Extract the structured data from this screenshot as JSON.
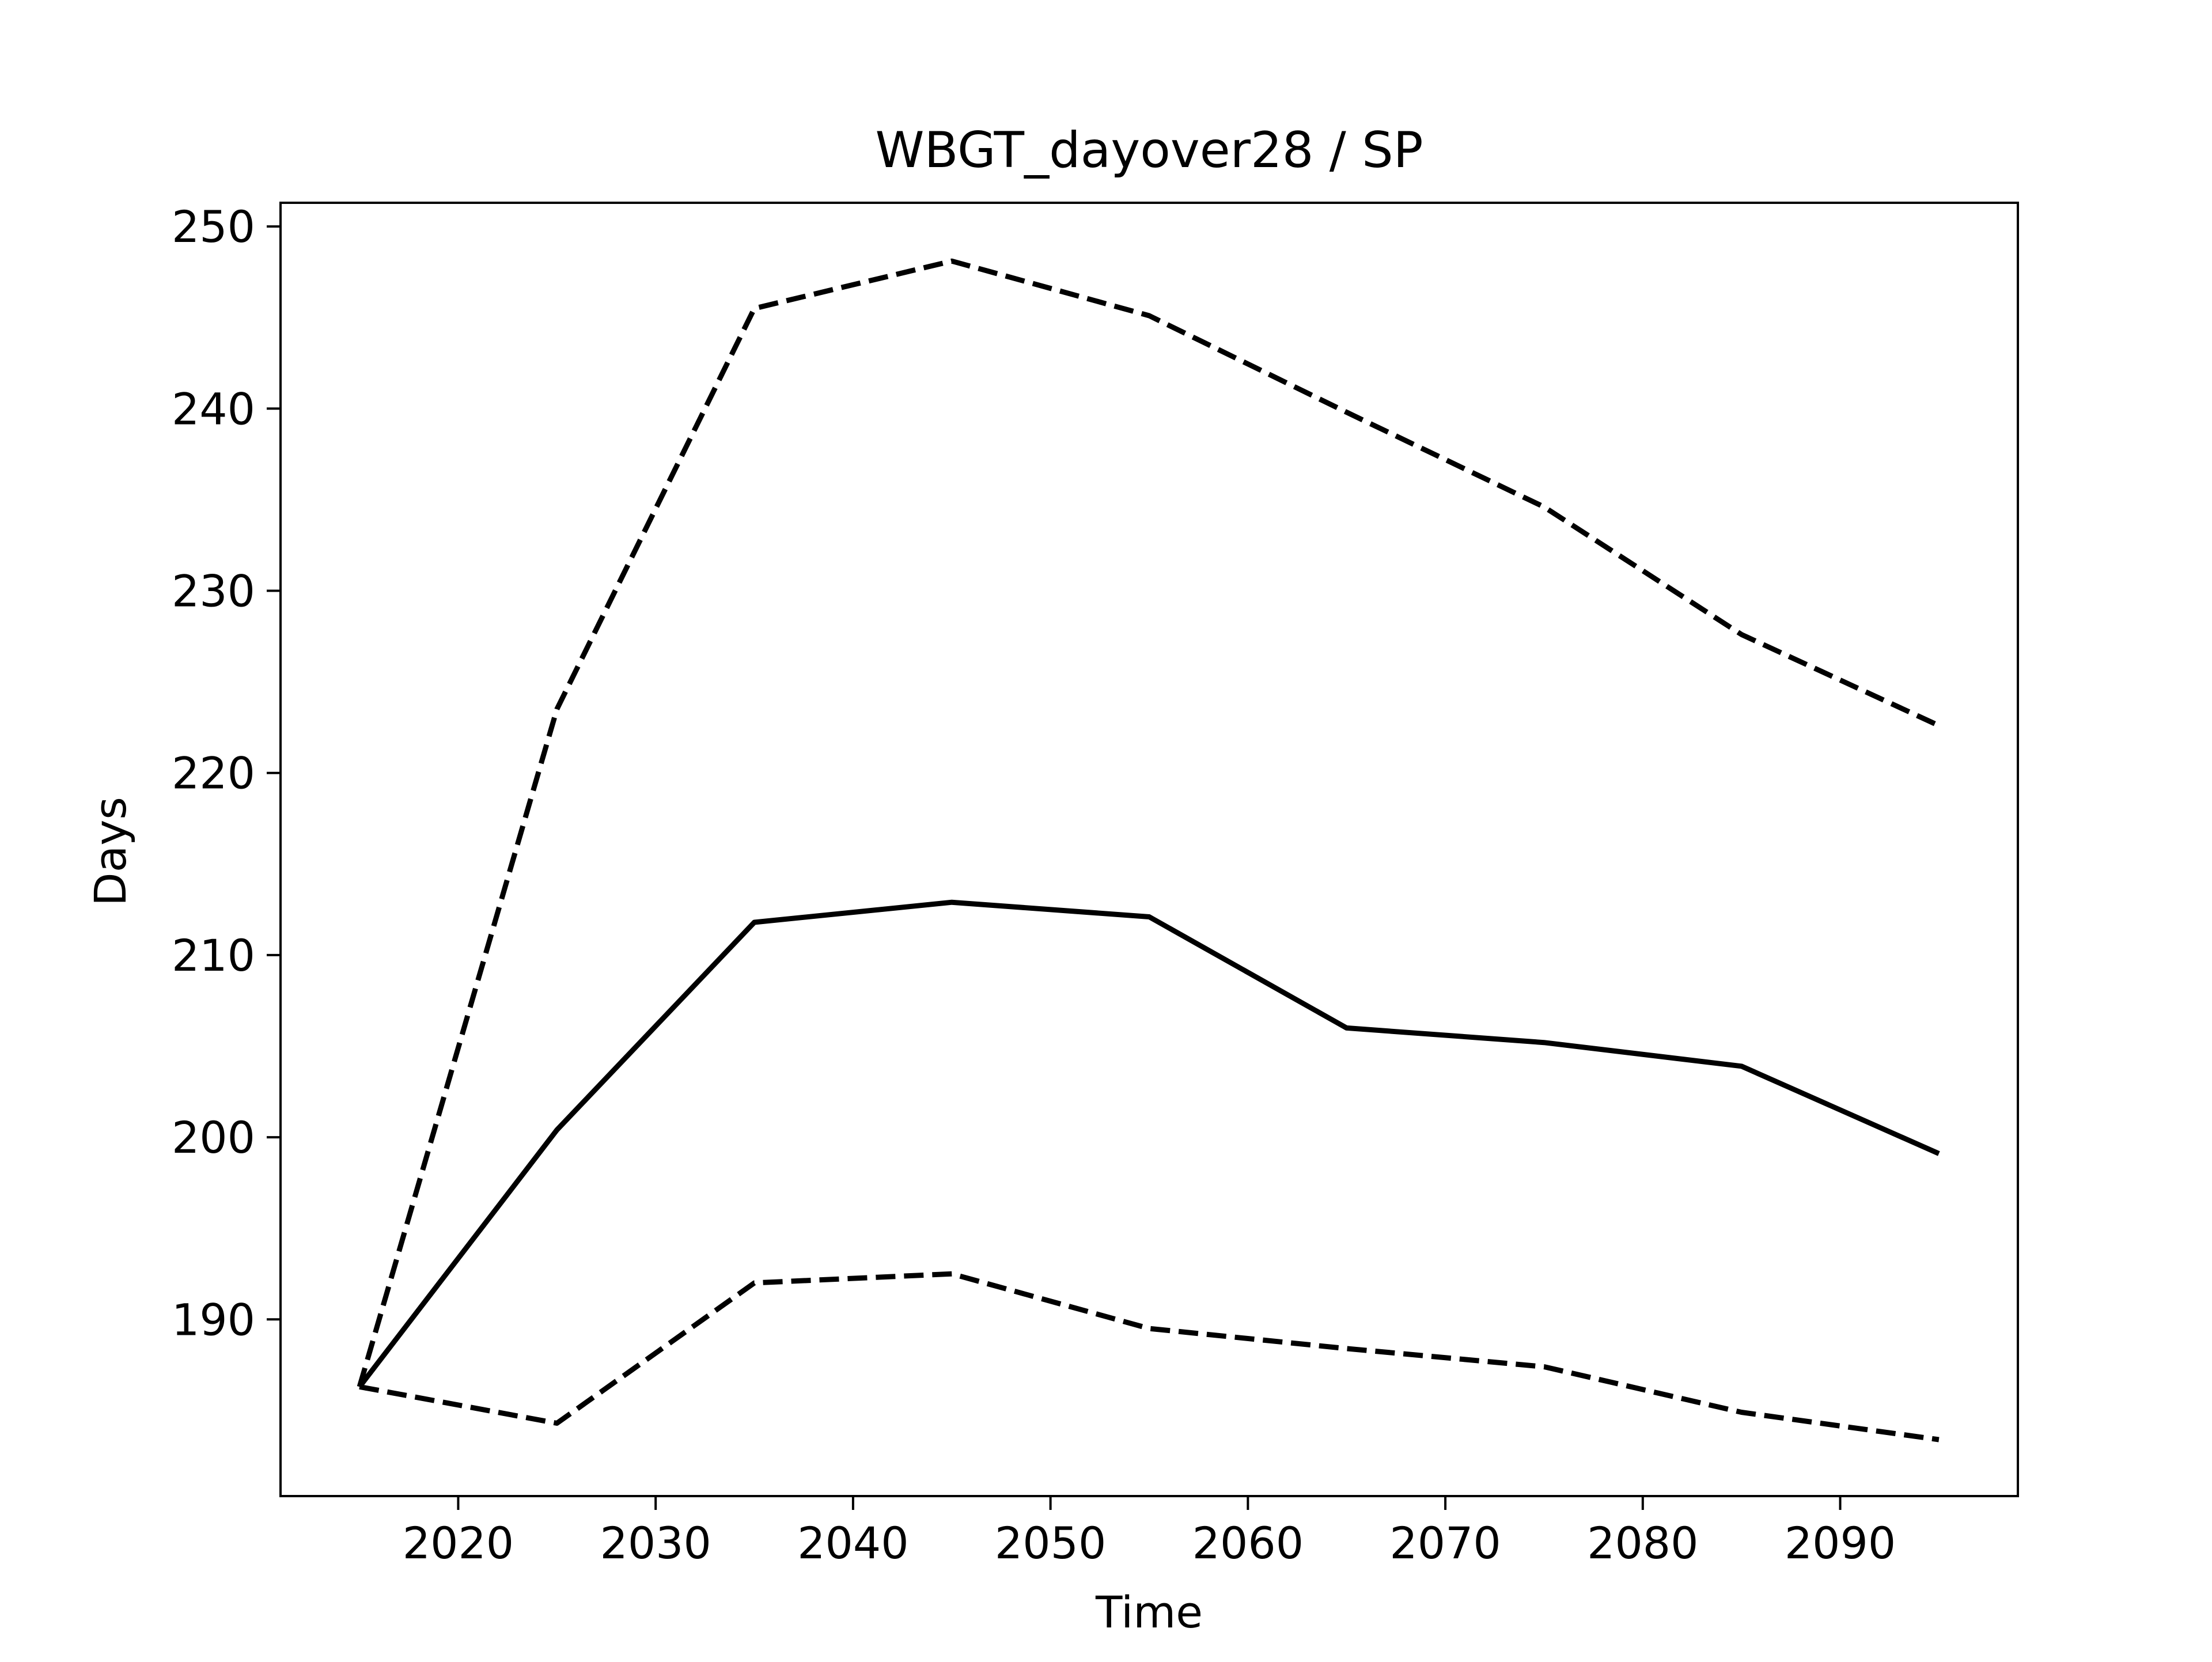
{
  "chart_data": {
    "type": "line",
    "title": "WBGT_dayover28 / SP",
    "xlabel": "Time",
    "ylabel": "Days",
    "x": [
      2015,
      2025,
      2035,
      2045,
      2055,
      2065,
      2075,
      2085,
      2095
    ],
    "xlim": [
      2011,
      2099
    ],
    "ylim": [
      180.3,
      251.3
    ],
    "xticks": [
      2020,
      2030,
      2040,
      2050,
      2060,
      2070,
      2080,
      2090
    ],
    "yticks": [
      190,
      200,
      210,
      220,
      230,
      240,
      250
    ],
    "grid": false,
    "legend": "none",
    "series": [
      {
        "style": "solid",
        "color": "#000000",
        "values": [
          186.3,
          200.4,
          211.8,
          212.9,
          212.1,
          206.0,
          205.2,
          203.9,
          199.1
        ]
      },
      {
        "style": "dashed",
        "color": "#000000",
        "values": [
          186.3,
          223.5,
          245.5,
          248.1,
          245.1,
          239.8,
          234.6,
          227.6,
          222.6
        ]
      },
      {
        "style": "dashed",
        "color": "#000000",
        "values": [
          186.3,
          184.3,
          192.0,
          192.5,
          189.5,
          188.4,
          187.4,
          184.9,
          183.4
        ]
      }
    ]
  }
}
